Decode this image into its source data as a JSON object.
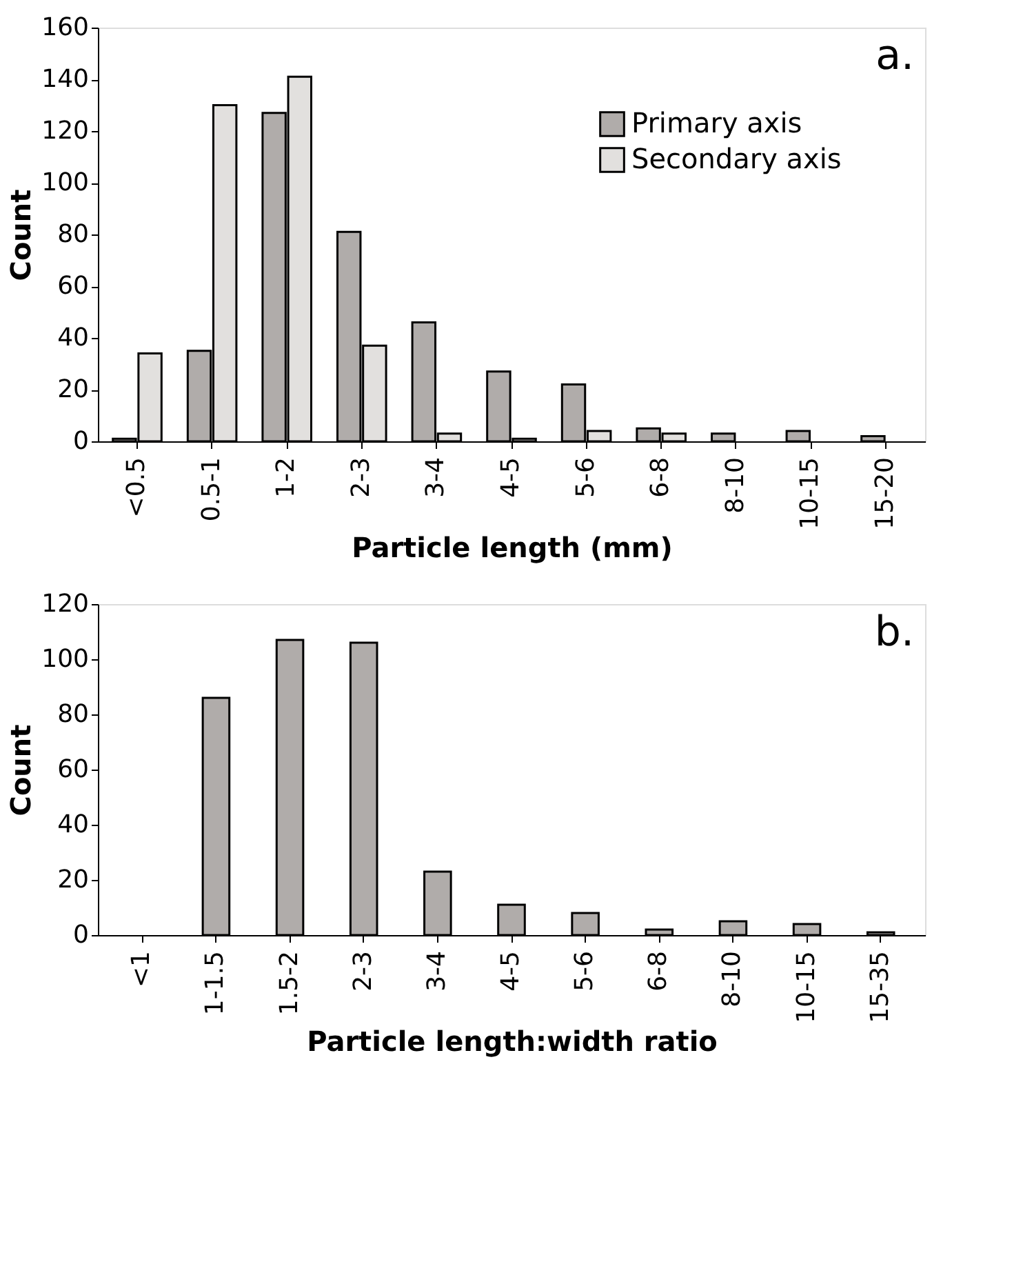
{
  "chart_data": [
    {
      "type": "bar",
      "xlabel": "Particle length (mm)",
      "ylabel": "Count",
      "categories": [
        "<0.5",
        "0.5-1",
        "1-2",
        "2-3",
        "3-4",
        "4-5",
        "5-6",
        "6-8",
        "8-10",
        "10-15",
        "15-20"
      ],
      "series": [
        {
          "name": "Primary axis",
          "color": "#b0acaa",
          "values": [
            1,
            35,
            127,
            81,
            46,
            27,
            22,
            5,
            3,
            4,
            2
          ]
        },
        {
          "name": "Secondary axis",
          "color": "#e2e0de",
          "values": [
            34,
            130,
            141,
            37,
            3,
            1,
            4,
            3,
            null,
            null,
            null
          ]
        }
      ],
      "ylim": [
        0,
        160
      ],
      "yticks": [
        0,
        20,
        40,
        60,
        80,
        100,
        120,
        140,
        160
      ],
      "grid": false,
      "legend": "top right",
      "annotations": [
        "a."
      ]
    },
    {
      "type": "bar",
      "xlabel": "Particle length:width ratio",
      "ylabel": "Count",
      "categories": [
        "<1",
        "1-1.5",
        "1.5-2",
        "2-3",
        "3-4",
        "4-5",
        "5-6",
        "6-8",
        "8-10",
        "10-15",
        "15-35"
      ],
      "series": [
        {
          "color": "#b0acaa",
          "values": [
            null,
            86,
            107,
            106,
            23,
            11,
            8,
            2,
            5,
            4,
            1
          ]
        }
      ],
      "ylim": [
        0,
        120
      ],
      "yticks": [
        0,
        20,
        40,
        60,
        80,
        100,
        120
      ],
      "grid": false,
      "legend": false,
      "annotations": [
        "b."
      ]
    }
  ]
}
